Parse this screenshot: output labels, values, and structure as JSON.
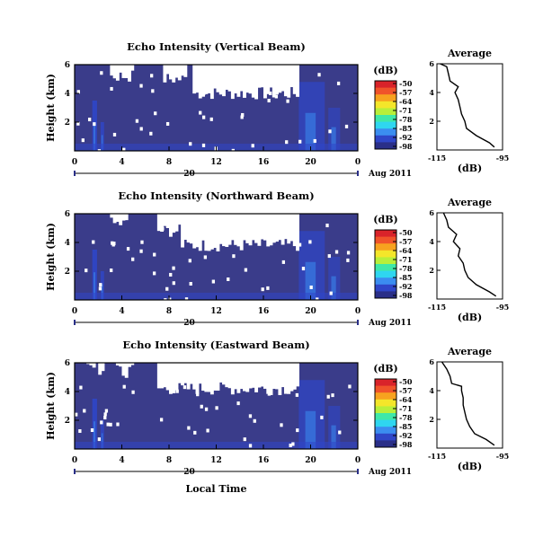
{
  "figure": {
    "xlabel": "Local Time",
    "heatmap_xticks": [
      "0",
      "4",
      "8",
      "12",
      "16",
      "20",
      "0"
    ],
    "date_label": "20",
    "month_label": "Aug 2011",
    "colorbar_unit": "(dB)",
    "colorbar_ticks": [
      "-50",
      "-57",
      "-64",
      "-71",
      "-78",
      "-85",
      "-92",
      "-98"
    ],
    "colorscale": [
      "#2a2f88",
      "#2f46c8",
      "#3b8df0",
      "#2fd6f0",
      "#3fe8a8",
      "#b8ef3a",
      "#f4e62a",
      "#f7a21f",
      "#f0532a",
      "#d9232a"
    ],
    "heatmap_background": "#3a3c8a",
    "gap_color": "#ffffff"
  },
  "chart_data": [
    {
      "type": "heatmap",
      "title": "Echo Intensity (Vertical Beam)",
      "ylabel": "Height (km)",
      "xlabel": "Local Time",
      "x_range_hours": [
        0,
        24
      ],
      "yticks": [
        "6",
        "4",
        "2"
      ],
      "ylim": [
        0,
        6
      ],
      "colorbar_range_db": [
        -98,
        -50
      ],
      "notes": "Mostly -92 to -98 dB; white gaps above ~4-6 km from 10-19 h; enhanced echoes near surface and around 19-21 h",
      "profile": {
        "type": "line",
        "title": "Average",
        "xlabel": "(dB)",
        "x_ticks": [
          "-115",
          "-95"
        ],
        "xlim": [
          -115,
          -95
        ],
        "y_ticks": [
          "6",
          "4",
          "2"
        ],
        "ylim": [
          0,
          6
        ],
        "points": [
          [
            -97.5,
            0.2
          ],
          [
            -99.0,
            0.5
          ],
          [
            -103.0,
            1.0
          ],
          [
            -106.0,
            1.5
          ],
          [
            -106.5,
            2.0
          ],
          [
            -107.5,
            2.5
          ],
          [
            -108.0,
            3.0
          ],
          [
            -108.5,
            3.5
          ],
          [
            -109.5,
            4.0
          ],
          [
            -108.5,
            4.4
          ],
          [
            -111.0,
            4.8
          ],
          [
            -111.5,
            5.3
          ],
          [
            -112.0,
            5.8
          ],
          [
            -114.0,
            6.0
          ]
        ]
      }
    },
    {
      "type": "heatmap",
      "title": "Echo Intensity (Northward Beam)",
      "ylabel": "Height (km)",
      "xlabel": "Local Time",
      "x_range_hours": [
        0,
        24
      ],
      "yticks": [
        "6",
        "4",
        "2"
      ],
      "ylim": [
        0,
        6
      ],
      "colorbar_range_db": [
        -98,
        -50
      ],
      "notes": "Similar pattern; larger white region from 9-19 h above ~4 km",
      "profile": {
        "type": "line",
        "title": "Average",
        "xlabel": "(dB)",
        "x_ticks": [
          "-115",
          "-95"
        ],
        "xlim": [
          -115,
          -95
        ],
        "y_ticks": [
          "6",
          "4",
          "2"
        ],
        "ylim": [
          0,
          6
        ],
        "points": [
          [
            -97.0,
            0.2
          ],
          [
            -99.0,
            0.5
          ],
          [
            -103.0,
            1.0
          ],
          [
            -105.5,
            1.5
          ],
          [
            -106.5,
            2.0
          ],
          [
            -107.0,
            2.5
          ],
          [
            -108.5,
            3.0
          ],
          [
            -108.0,
            3.5
          ],
          [
            -110.0,
            4.0
          ],
          [
            -109.0,
            4.5
          ],
          [
            -111.5,
            5.0
          ],
          [
            -112.0,
            5.5
          ],
          [
            -113.0,
            6.0
          ]
        ]
      }
    },
    {
      "type": "heatmap",
      "title": "Echo Intensity (Eastward Beam)",
      "ylabel": "Height (km)",
      "xlabel": "Local Time",
      "x_range_hours": [
        0,
        24
      ],
      "yticks": [
        "6",
        "4",
        "2"
      ],
      "ylim": [
        0,
        6
      ],
      "colorbar_range_db": [
        -98,
        -50
      ],
      "notes": "Similar pattern; white gaps above ~4 km from 7-19 h",
      "profile": {
        "type": "line",
        "title": "Average",
        "xlabel": "(dB)",
        "x_ticks": [
          "-115",
          "-95"
        ],
        "xlim": [
          -115,
          -95
        ],
        "y_ticks": [
          "6",
          "4",
          "2"
        ],
        "ylim": [
          0,
          6
        ],
        "points": [
          [
            -97.5,
            0.2
          ],
          [
            -100.0,
            0.6
          ],
          [
            -103.5,
            1.0
          ],
          [
            -105.0,
            1.5
          ],
          [
            -106.0,
            2.0
          ],
          [
            -106.5,
            2.5
          ],
          [
            -107.0,
            3.0
          ],
          [
            -107.0,
            3.5
          ],
          [
            -107.5,
            4.0
          ],
          [
            -107.5,
            4.3
          ],
          [
            -110.5,
            4.5
          ],
          [
            -111.0,
            5.0
          ],
          [
            -112.0,
            5.5
          ],
          [
            -113.5,
            6.0
          ]
        ]
      }
    }
  ]
}
